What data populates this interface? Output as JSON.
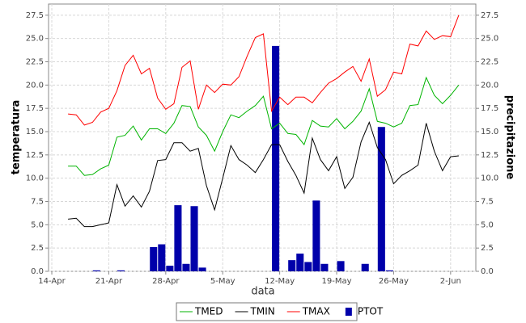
{
  "chart_data": {
    "type": "line",
    "x_label": "data",
    "y_label": "temperatura",
    "y2_label": "precipitazione",
    "categories": [
      "14-Apr",
      null,
      null,
      null,
      null,
      null,
      null,
      "21-Apr",
      null,
      null,
      null,
      null,
      null,
      null,
      "28-Apr",
      null,
      null,
      null,
      null,
      null,
      null,
      "5-May",
      null,
      null,
      null,
      null,
      null,
      null,
      "12-May",
      null,
      null,
      null,
      null,
      null,
      null,
      "19-May",
      null,
      null,
      null,
      null,
      null,
      null,
      "26-May",
      null,
      null,
      null,
      null,
      null,
      null,
      "2-Jun",
      null
    ],
    "series": [
      {
        "name": "TMED",
        "color": "#00b400",
        "values": [
          null,
          null,
          11.3,
          11.3,
          10.3,
          10.4,
          11.0,
          11.4,
          14.4,
          14.6,
          15.6,
          14.1,
          15.3,
          15.3,
          14.8,
          15.9,
          17.8,
          17.7,
          15.5,
          14.6,
          12.9,
          15.0,
          16.8,
          16.5,
          17.2,
          17.8,
          18.8,
          15.3,
          15.9,
          14.8,
          14.7,
          13.6,
          16.2,
          15.6,
          15.5,
          16.4,
          15.3,
          16.1,
          17.2,
          19.6,
          16.1,
          15.9,
          15.5,
          15.9,
          17.8,
          17.9,
          20.8,
          18.9,
          18.0,
          18.9,
          20.0
        ]
      },
      {
        "name": "TMIN",
        "color": "#000000",
        "values": [
          null,
          null,
          5.6,
          5.7,
          4.8,
          4.8,
          5.0,
          5.2,
          9.3,
          7.0,
          8.1,
          6.9,
          8.6,
          11.9,
          12.0,
          13.8,
          13.8,
          12.9,
          13.2,
          9.2,
          6.6,
          10.0,
          13.5,
          12.0,
          11.4,
          10.6,
          12.0,
          13.6,
          13.6,
          11.8,
          10.3,
          8.4,
          14.3,
          12.0,
          10.8,
          12.3,
          8.9,
          10.1,
          13.9,
          16.0,
          13.3,
          12.0,
          9.4,
          10.3,
          10.8,
          11.4,
          15.9,
          12.9,
          10.8,
          12.3,
          12.4
        ]
      },
      {
        "name": "TMAX",
        "color": "#ff0000",
        "values": [
          null,
          null,
          16.9,
          16.8,
          15.7,
          16.0,
          17.1,
          17.5,
          19.4,
          22.1,
          23.2,
          21.2,
          21.8,
          18.6,
          17.4,
          18.0,
          21.9,
          22.6,
          17.4,
          20.0,
          19.2,
          20.1,
          20.0,
          20.9,
          23.1,
          25.1,
          25.5,
          17.2,
          18.7,
          17.9,
          18.7,
          18.7,
          18.1,
          19.2,
          20.2,
          20.7,
          21.4,
          22.0,
          20.4,
          22.8,
          18.8,
          19.5,
          21.4,
          21.2,
          24.4,
          24.2,
          25.8,
          24.9,
          25.3,
          25.2,
          27.5
        ]
      },
      {
        "name": "PTOT",
        "color": "#0000aa",
        "type": "bar",
        "axis": "y2",
        "values": [
          null,
          null,
          0,
          0,
          0,
          0.1,
          0,
          0,
          0.1,
          0,
          0,
          0,
          2.6,
          2.9,
          0.6,
          7.1,
          0.8,
          7.0,
          0.4,
          0,
          0,
          0,
          0,
          0,
          0,
          0,
          0,
          24.2,
          0,
          1.2,
          1.9,
          1.0,
          7.6,
          0.8,
          0,
          1.1,
          0,
          0,
          0.8,
          0,
          15.5,
          0.1,
          0,
          0,
          0,
          0,
          0,
          0,
          0,
          0,
          0
        ]
      }
    ],
    "ylim": [
      0,
      28.7
    ],
    "yticks": [
      {
        "value": 0,
        "label": "0.0"
      },
      {
        "value": 2.5,
        "label": "2.5"
      },
      {
        "value": 5,
        "label": "5.0"
      },
      {
        "value": 7.5,
        "label": "7.5"
      },
      {
        "value": 10,
        "label": "10.0"
      },
      {
        "value": 12.5,
        "label": "12.5"
      },
      {
        "value": 15,
        "label": "15.0"
      },
      {
        "value": 17.5,
        "label": "17.5"
      },
      {
        "value": 20,
        "label": "20.0"
      },
      {
        "value": 22.5,
        "label": "22.5"
      },
      {
        "value": 25,
        "label": "25.0"
      },
      {
        "value": 27.5,
        "label": "27.5"
      }
    ],
    "y2lim": [
      0,
      28.7
    ],
    "y2ticks": [
      {
        "value": 0,
        "label": "0.0"
      },
      {
        "value": 2.5,
        "label": "2.5"
      },
      {
        "value": 5,
        "label": "5.0"
      },
      {
        "value": 7.5,
        "label": "7.5"
      },
      {
        "value": 10,
        "label": "10.0"
      },
      {
        "value": 12.5,
        "label": "12.5"
      },
      {
        "value": 15,
        "label": "15.0"
      },
      {
        "value": 17.5,
        "label": "17.5"
      },
      {
        "value": 20,
        "label": "20.0"
      },
      {
        "value": 22.5,
        "label": "22.5"
      },
      {
        "value": 25,
        "label": "25.0"
      },
      {
        "value": 27.5,
        "label": "27.5"
      }
    ],
    "grid": true,
    "legend": "bottom"
  }
}
